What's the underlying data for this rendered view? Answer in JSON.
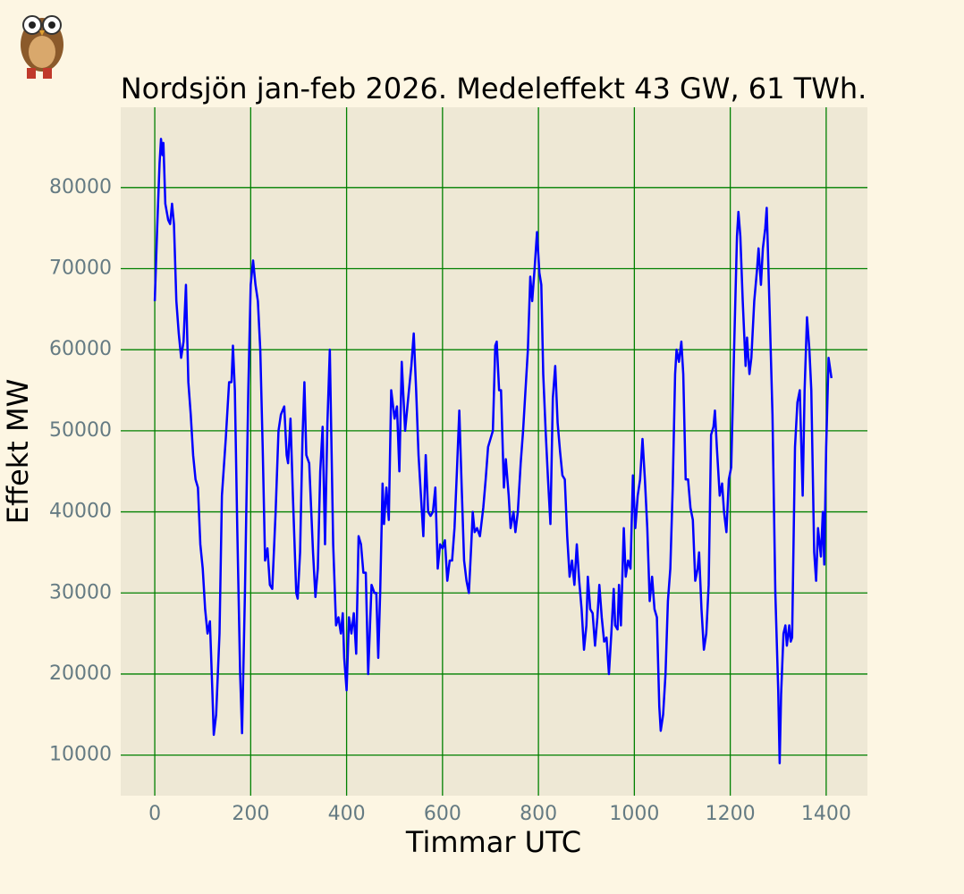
{
  "chart_data": {
    "type": "line",
    "title": "Nordsjön jan-feb 2026. Medeleffekt 43 GW, 61 TWh.",
    "xlabel": "Timmar UTC",
    "ylabel": "Effekt MW",
    "color": "#0000ff",
    "grid": true,
    "grid_color": "#008000",
    "xlim": [
      -71,
      1486
    ],
    "ylim": [
      5000,
      89900
    ],
    "xticks": [
      0,
      200,
      400,
      600,
      800,
      1000,
      1200,
      1400
    ],
    "yticks": [
      10000,
      20000,
      30000,
      40000,
      50000,
      60000,
      70000,
      80000
    ],
    "x": [
      0,
      5,
      10,
      13,
      16,
      18,
      22,
      28,
      32,
      36,
      40,
      45,
      50,
      55,
      60,
      65,
      70,
      75,
      80,
      85,
      90,
      95,
      100,
      105,
      110,
      115,
      120,
      123,
      128,
      135,
      140,
      148,
      155,
      160,
      163,
      167,
      172,
      178,
      182,
      188,
      195,
      200,
      205,
      210,
      215,
      220,
      225,
      230,
      235,
      240,
      245,
      252,
      258,
      263,
      270,
      275,
      278,
      283,
      288,
      295,
      298,
      303,
      308,
      312,
      316,
      322,
      330,
      335,
      340,
      345,
      350,
      355,
      360,
      365,
      372,
      378,
      383,
      388,
      392,
      395,
      400,
      405,
      410,
      415,
      420,
      425,
      430,
      435,
      440,
      445,
      452,
      458,
      462,
      466,
      470,
      475,
      478,
      483,
      488,
      493,
      500,
      505,
      510,
      515,
      522,
      530,
      535,
      540,
      545,
      550,
      555,
      560,
      565,
      570,
      575,
      580,
      585,
      590,
      595,
      600,
      605,
      610,
      615,
      620,
      625,
      630,
      635,
      640,
      645,
      650,
      655,
      660,
      663,
      667,
      672,
      678,
      685,
      690,
      695,
      700,
      705,
      710,
      713,
      718,
      722,
      728,
      732,
      738,
      742,
      748,
      752,
      757,
      763,
      768,
      772,
      778,
      783,
      787,
      792,
      797,
      802,
      806,
      810,
      815,
      820,
      825,
      830,
      835,
      840,
      845,
      850,
      855,
      860,
      865,
      870,
      875,
      880,
      885,
      890,
      895,
      900,
      903,
      908,
      913,
      918,
      923,
      927,
      932,
      937,
      942,
      947,
      952,
      957,
      960,
      965,
      968,
      972,
      978,
      982,
      987,
      992,
      997,
      1002,
      1007,
      1012,
      1017,
      1022,
      1027,
      1032,
      1037,
      1042,
      1047,
      1052,
      1055,
      1060,
      1065,
      1070,
      1075,
      1080,
      1085,
      1088,
      1093,
      1098,
      1102,
      1107,
      1112,
      1117,
      1122,
      1127,
      1132,
      1135,
      1140,
      1145,
      1150,
      1155,
      1160,
      1165,
      1168,
      1172,
      1178,
      1183,
      1187,
      1192,
      1197,
      1202,
      1208,
      1214,
      1217,
      1221,
      1226,
      1232,
      1235,
      1240,
      1244,
      1250,
      1256,
      1259,
      1264,
      1268,
      1273,
      1276,
      1282,
      1288,
      1294,
      1300,
      1303,
      1306,
      1311,
      1315,
      1318,
      1323,
      1326,
      1329,
      1335,
      1340,
      1345,
      1351,
      1355,
      1360,
      1365,
      1369,
      1375,
      1379,
      1383,
      1389,
      1393,
      1396,
      1400,
      1405,
      1411
    ],
    "values": [
      66000,
      75000,
      83000,
      86000,
      84000,
      85500,
      78000,
      76000,
      75500,
      78000,
      75500,
      66000,
      62000,
      59000,
      61000,
      68000,
      56000,
      52000,
      47000,
      44000,
      43000,
      36000,
      33000,
      28000,
      25000,
      26500,
      18000,
      12500,
      15000,
      25000,
      42000,
      49000,
      56000,
      56000,
      60500,
      55000,
      38000,
      20000,
      12700,
      30000,
      55000,
      68000,
      71000,
      68000,
      66000,
      60000,
      48000,
      34000,
      35500,
      31000,
      30500,
      40000,
      50000,
      52000,
      53000,
      47000,
      46000,
      51500,
      42000,
      30000,
      29300,
      35000,
      49000,
      56000,
      47000,
      46000,
      35000,
      29500,
      33000,
      45000,
      50500,
      36000,
      51000,
      60000,
      36000,
      26000,
      27000,
      25000,
      27500,
      22000,
      18000,
      27000,
      25000,
      27500,
      22500,
      37000,
      36000,
      32500,
      32500,
      20000,
      31000,
      30000,
      30000,
      22000,
      30000,
      43500,
      38500,
      43000,
      39000,
      55000,
      51500,
      53000,
      45000,
      58500,
      50000,
      55000,
      58000,
      62000,
      55000,
      47000,
      42000,
      37000,
      47000,
      40000,
      39500,
      40000,
      43000,
      33000,
      36000,
      35500,
      36500,
      31500,
      34000,
      34000,
      38000,
      45000,
      52500,
      43000,
      34000,
      31500,
      30000,
      36000,
      40000,
      37500,
      38000,
      37000,
      40500,
      44000,
      48000,
      49000,
      50000,
      60500,
      61000,
      55000,
      55000,
      43000,
      46500,
      42000,
      38000,
      40000,
      37500,
      40000,
      46000,
      50000,
      54000,
      60000,
      69000,
      66000,
      70000,
      74500,
      69500,
      68000,
      57000,
      50000,
      44000,
      38500,
      54000,
      58000,
      51000,
      47500,
      44500,
      44000,
      37000,
      32000,
      34000,
      31000,
      36000,
      31500,
      28000,
      23000,
      26000,
      32000,
      28000,
      27500,
      23500,
      27000,
      31000,
      27000,
      24000,
      24500,
      20000,
      25000,
      30500,
      26000,
      25500,
      31000,
      26000,
      38000,
      32000,
      34000,
      33000,
      44500,
      38000,
      42000,
      44000,
      49000,
      44000,
      38000,
      29000,
      32000,
      28000,
      27000,
      16000,
      13000,
      15000,
      20000,
      29000,
      33000,
      43000,
      57000,
      60000,
      58500,
      61000,
      57000,
      44000,
      44000,
      40500,
      39000,
      31500,
      33000,
      35000,
      28000,
      23000,
      25000,
      31000,
      49500,
      50500,
      52500,
      48000,
      42000,
      43500,
      40000,
      37500,
      44000,
      45500,
      60000,
      74000,
      77000,
      74000,
      66000,
      58000,
      61500,
      57000,
      59000,
      66000,
      70000,
      72500,
      68000,
      72500,
      75000,
      77500,
      65000,
      52000,
      30000,
      18000,
      9000,
      17500,
      25000,
      26000,
      23500,
      26000,
      24000,
      24500,
      48000,
      53500,
      55000,
      42000,
      55000,
      64000,
      60000,
      55000,
      35000,
      31500,
      38000,
      34500,
      40000,
      33500,
      48000,
      59000,
      56500
    ]
  }
}
